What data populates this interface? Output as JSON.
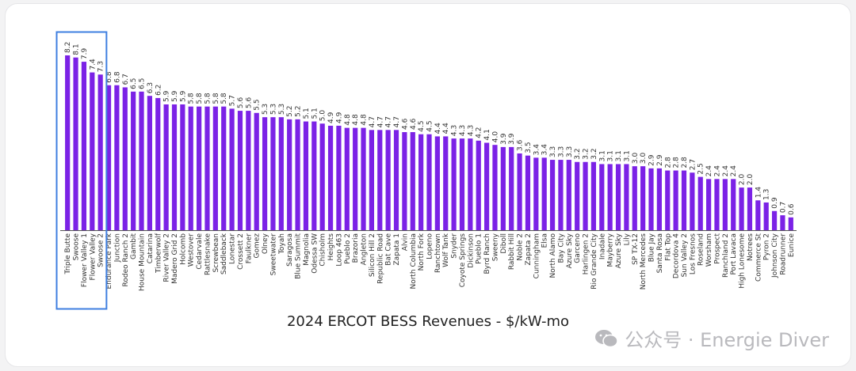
{
  "chart_data": {
    "type": "bar",
    "title": "2024 ERCOT BESS Revenues - $/kW-mo",
    "xlabel": "",
    "ylabel": "",
    "ylim": [
      0,
      8.2
    ],
    "grid": false,
    "bar_color": "#7b22e6",
    "highlight_color": "#3f7fe0",
    "highlighted_categories": [
      "Triple Butte",
      "Swoose",
      "Flower Valley 1",
      "Flower Valley",
      "Swoose 2"
    ],
    "categories": [
      "Triple Butte",
      "Swoose",
      "Flower Valley 1",
      "Flower Valley",
      "Swoose 2",
      "Endurance Park",
      "Junction",
      "Rodeo Ranch 2",
      "Gambit",
      "House Mountain",
      "Catarina",
      "Timberwolf",
      "River Valley 2",
      "Madero Grid 2",
      "Holcomb",
      "Westover",
      "Cedarvale",
      "Rattlesnake",
      "Screwbean",
      "Saddleback",
      "Lonestar",
      "Crossett 2",
      "Faulkner",
      "Gomez",
      "Olney",
      "Sweetwater",
      "Toyah",
      "Saragosa",
      "Blue Summit",
      "Magnolia",
      "Odessa SW",
      "Chisholm",
      "Heights",
      "Loop 463",
      "Pueblo 2",
      "Brazoria",
      "Angleton",
      "Silicon Hill 2",
      "Republic Road",
      "Bat Cave",
      "Zapata 1",
      "Alvin",
      "North Columbia",
      "North Fork",
      "Lopeno",
      "Ranchtown",
      "Wolf Tank",
      "Snyder",
      "Coyote Springs",
      "Dickinson",
      "Pueblo 1",
      "Byrd Ranch",
      "Sweeny",
      "Diboll",
      "Rabbit Hill",
      "Noble 2",
      "Zapata 2",
      "Cunningham",
      "Elsa",
      "North Alamo",
      "Bay City",
      "Azure Sky",
      "Garceno",
      "Harlingen 2",
      "Rio Grande City",
      "Inadale",
      "Mayberry",
      "Azure Sky",
      "Lily",
      "SP TX-12",
      "North Mercedes",
      "Blue Jay",
      "Santa Rosa",
      "Flat Top",
      "Decordova 4",
      "Sun Valley 2",
      "Los Fresnos",
      "Roseland",
      "Worsham",
      "Prospect",
      "Ranchland 2",
      "Port Lavaca",
      "High Lonesome",
      "Notrees",
      "Commerce St",
      "Pyron 2",
      "Johnson City",
      "Roadrunner",
      "Eunice"
    ],
    "values": [
      8.2,
      8.1,
      7.9,
      7.4,
      7.3,
      6.8,
      6.8,
      6.7,
      6.5,
      6.5,
      6.3,
      6.2,
      5.9,
      5.9,
      5.9,
      5.8,
      5.8,
      5.8,
      5.8,
      5.8,
      5.7,
      5.6,
      5.6,
      5.5,
      5.3,
      5.3,
      5.3,
      5.2,
      5.2,
      5.1,
      5.1,
      5.0,
      4.9,
      4.9,
      4.8,
      4.8,
      4.8,
      4.7,
      4.7,
      4.7,
      4.7,
      4.6,
      4.6,
      4.5,
      4.5,
      4.4,
      4.4,
      4.3,
      4.3,
      4.3,
      4.2,
      4.1,
      4.0,
      3.9,
      3.9,
      3.6,
      3.5,
      3.4,
      3.4,
      3.3,
      3.3,
      3.3,
      3.2,
      3.2,
      3.2,
      3.1,
      3.1,
      3.1,
      3.1,
      3.0,
      3.0,
      2.9,
      2.9,
      2.8,
      2.8,
      2.8,
      2.7,
      2.5,
      2.4,
      2.4,
      2.4,
      2.4,
      2.0,
      2.0,
      1.4,
      1.3,
      0.9,
      0.7,
      0.6
    ]
  },
  "watermark": {
    "text": "公众号 · Energie Diver",
    "icon": "wechat-icon"
  }
}
